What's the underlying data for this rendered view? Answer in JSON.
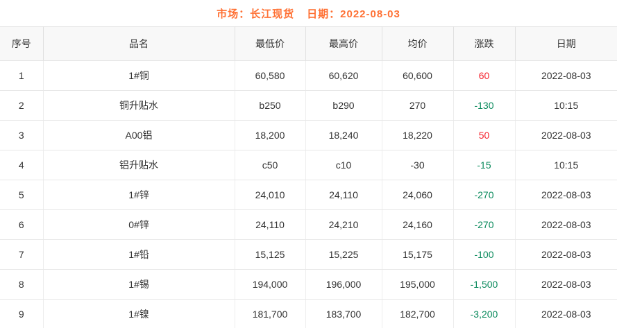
{
  "title": {
    "market_label": "市场：长江现货",
    "date_label": "日期：2022-08-03"
  },
  "colors": {
    "title": "#ff7033",
    "up": "#f5222d",
    "down": "#0a8a5c",
    "header_bg": "#f8f8f8",
    "text": "#333333"
  },
  "table": {
    "columns": [
      "序号",
      "品名",
      "最低价",
      "最高价",
      "均价",
      "涨跌",
      "日期"
    ],
    "rows": [
      {
        "no": "1",
        "name": "1#铜",
        "low": "60,580",
        "high": "60,620",
        "avg": "60,600",
        "change": "60",
        "direction": "up",
        "date": "2022-08-03"
      },
      {
        "no": "2",
        "name": "铜升贴水",
        "low": "b250",
        "high": "b290",
        "avg": "270",
        "change": "-130",
        "direction": "down",
        "date": "10:15"
      },
      {
        "no": "3",
        "name": "A00铝",
        "low": "18,200",
        "high": "18,240",
        "avg": "18,220",
        "change": "50",
        "direction": "up",
        "date": "2022-08-03"
      },
      {
        "no": "4",
        "name": "铝升贴水",
        "low": "c50",
        "high": "c10",
        "avg": "-30",
        "change": "-15",
        "direction": "down",
        "date": "10:15"
      },
      {
        "no": "5",
        "name": "1#锌",
        "low": "24,010",
        "high": "24,110",
        "avg": "24,060",
        "change": "-270",
        "direction": "down",
        "date": "2022-08-03"
      },
      {
        "no": "6",
        "name": "0#锌",
        "low": "24,110",
        "high": "24,210",
        "avg": "24,160",
        "change": "-270",
        "direction": "down",
        "date": "2022-08-03"
      },
      {
        "no": "7",
        "name": "1#铅",
        "low": "15,125",
        "high": "15,225",
        "avg": "15,175",
        "change": "-100",
        "direction": "down",
        "date": "2022-08-03"
      },
      {
        "no": "8",
        "name": "1#锡",
        "low": "194,000",
        "high": "196,000",
        "avg": "195,000",
        "change": "-1,500",
        "direction": "down",
        "date": "2022-08-03"
      },
      {
        "no": "9",
        "name": "1#镍",
        "low": "181,700",
        "high": "183,700",
        "avg": "182,700",
        "change": "-3,200",
        "direction": "down",
        "date": "2022-08-03"
      }
    ]
  }
}
